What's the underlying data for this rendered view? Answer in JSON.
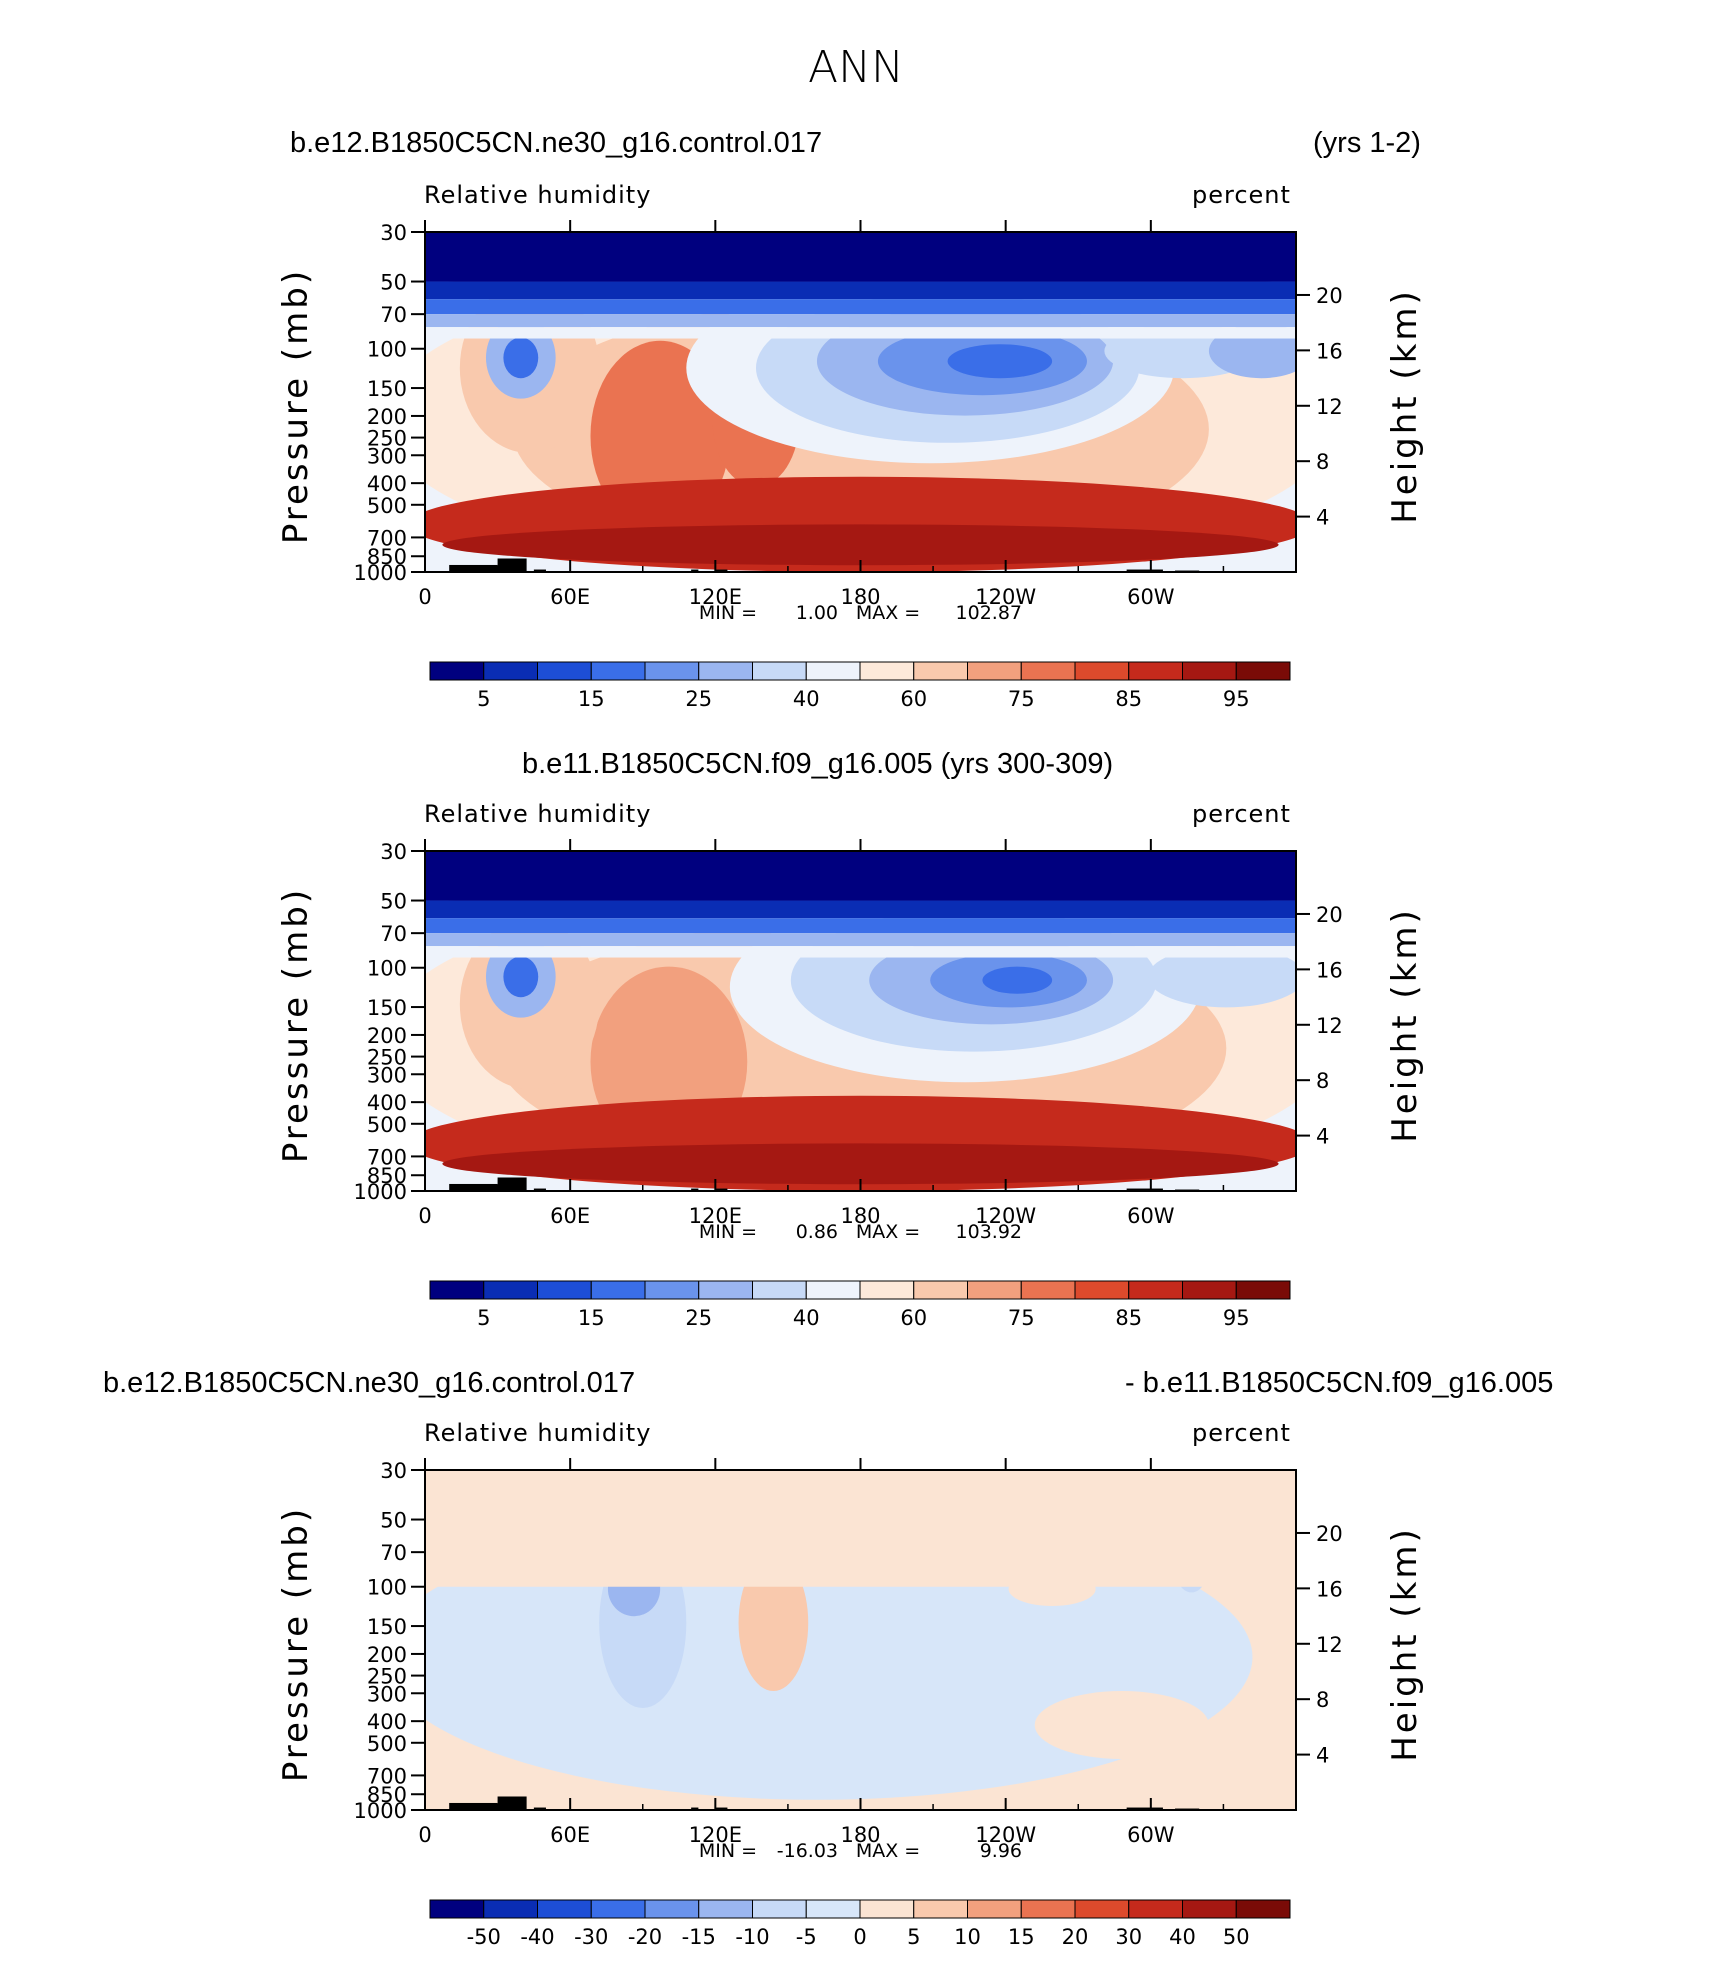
{
  "figure_title": "ANN",
  "colors": {
    "abs_palette": [
      "#00007f",
      "#0a2db4",
      "#1d4ed6",
      "#3a6ee8",
      "#6a93ec",
      "#9bb6f0",
      "#c7daf7",
      "#eef3fb",
      "#fde9da",
      "#f9c9ad",
      "#f2a07e",
      "#ea7351",
      "#dd4a2c",
      "#c52a1c",
      "#a51812",
      "#7a0b07"
    ],
    "diff_palette": [
      "#00007f",
      "#0a2db4",
      "#1d4ed6",
      "#3a6ee8",
      "#6a93ec",
      "#9bb6f0",
      "#c7daf7",
      "#d7e6f9",
      "#fbe4d3",
      "#f9c9ad",
      "#f2a07e",
      "#ea7351",
      "#dd4a2c",
      "#c52a1c",
      "#a51812",
      "#7a0b07"
    ],
    "land": "#000000"
  },
  "panels": [
    {
      "title_left": "b.e12.B1850C5CN.ne30_g16.control.017",
      "title_right": "(yrs 1-2)",
      "title_center": "",
      "var_label": "Relative  humidity",
      "units": "percent",
      "min_label": "MIN =",
      "min_value": "1.00",
      "max_label": "MAX =",
      "max_value": "102.87",
      "colorbar_labels": [
        "5",
        "15",
        "25",
        "40",
        "60",
        "75",
        "85",
        "95"
      ]
    },
    {
      "title_left": "",
      "title_right": "",
      "title_center": "b.e11.B1850C5CN.f09_g16.005 (yrs 300-309)",
      "var_label": "Relative  humidity",
      "units": "percent",
      "min_label": "MIN =",
      "min_value": "0.86",
      "max_label": "MAX =",
      "max_value": "103.92",
      "colorbar_labels": [
        "5",
        "15",
        "25",
        "40",
        "60",
        "75",
        "85",
        "95"
      ]
    },
    {
      "title_left": "b.e12.B1850C5CN.ne30_g16.control.017",
      "title_right": "- b.e11.B1850C5CN.f09_g16.005",
      "title_center": "",
      "var_label": "Relative  humidity",
      "units": "percent",
      "min_label": "MIN =",
      "min_value": "-16.03",
      "max_label": "MAX =",
      "max_value": "9.96",
      "colorbar_labels": [
        "-50",
        "-40",
        "-30",
        "-20",
        "-15",
        "-10",
        "-5",
        "0",
        "5",
        "10",
        "15",
        "20",
        "30",
        "40",
        "50"
      ]
    }
  ],
  "chart_data": [
    {
      "type": "heatmap",
      "title": "b.e12.B1850C5CN.ne30_g16.control.017 (yrs 1-2)",
      "variable": "Relative humidity",
      "units": "percent",
      "xlabel": "",
      "ylabel": "Pressure  (mb)",
      "y2label": "Height  (km)",
      "x_ticks": [
        "0",
        "60E",
        "120E",
        "180",
        "120W",
        "60W"
      ],
      "y_ticks": [
        "30",
        "50",
        "70",
        "100",
        "150",
        "200",
        "250",
        "300",
        "400",
        "500",
        "700",
        "850",
        "1000"
      ],
      "y_tick_values": [
        30,
        50,
        70,
        100,
        150,
        200,
        250,
        300,
        400,
        500,
        700,
        850,
        1000
      ],
      "y2_ticks": [
        "20",
        "16",
        "12",
        "8",
        "4"
      ],
      "y2_tick_values": [
        20,
        16,
        12,
        8,
        4
      ],
      "xlim": [
        0,
        360
      ],
      "ylim": [
        1000,
        30
      ],
      "contour_levels": [
        5,
        10,
        15,
        20,
        25,
        30,
        40,
        50,
        60,
        70,
        75,
        80,
        85,
        90,
        95
      ],
      "min": 1.0,
      "max": 102.87
    },
    {
      "type": "heatmap",
      "title": "b.e11.B1850C5CN.f09_g16.005 (yrs 300-309)",
      "variable": "Relative humidity",
      "units": "percent",
      "xlabel": "",
      "ylabel": "Pressure  (mb)",
      "y2label": "Height  (km)",
      "x_ticks": [
        "0",
        "60E",
        "120E",
        "180",
        "120W",
        "60W"
      ],
      "y_ticks": [
        "30",
        "50",
        "70",
        "100",
        "150",
        "200",
        "250",
        "300",
        "400",
        "500",
        "700",
        "850",
        "1000"
      ],
      "y_tick_values": [
        30,
        50,
        70,
        100,
        150,
        200,
        250,
        300,
        400,
        500,
        700,
        850,
        1000
      ],
      "y2_ticks": [
        "20",
        "16",
        "12",
        "8",
        "4"
      ],
      "y2_tick_values": [
        20,
        16,
        12,
        8,
        4
      ],
      "xlim": [
        0,
        360
      ],
      "ylim": [
        1000,
        30
      ],
      "contour_levels": [
        5,
        10,
        15,
        20,
        25,
        30,
        40,
        50,
        60,
        70,
        75,
        80,
        85,
        90,
        95
      ],
      "min": 0.86,
      "max": 103.92
    },
    {
      "type": "heatmap",
      "title": "b.e12.B1850C5CN.ne30_g16.control.017 - b.e11.B1850C5CN.f09_g16.005",
      "variable": "Relative humidity",
      "units": "percent",
      "xlabel": "",
      "ylabel": "Pressure  (mb)",
      "y2label": "Height  (km)",
      "x_ticks": [
        "0",
        "60E",
        "120E",
        "180",
        "120W",
        "60W"
      ],
      "y_ticks": [
        "30",
        "50",
        "70",
        "100",
        "150",
        "200",
        "250",
        "300",
        "400",
        "500",
        "700",
        "850",
        "1000"
      ],
      "y_tick_values": [
        30,
        50,
        70,
        100,
        150,
        200,
        250,
        300,
        400,
        500,
        700,
        850,
        1000
      ],
      "y2_ticks": [
        "20",
        "16",
        "12",
        "8",
        "4"
      ],
      "y2_tick_values": [
        20,
        16,
        12,
        8,
        4
      ],
      "xlim": [
        0,
        360
      ],
      "ylim": [
        1000,
        30
      ],
      "contour_levels": [
        -50,
        -40,
        -30,
        -20,
        -15,
        -10,
        -5,
        0,
        5,
        10,
        15,
        20,
        30,
        40,
        50
      ],
      "min": -16.03,
      "max": 9.96
    }
  ],
  "axis_text": {
    "ylabel": "Pressure  (mb)",
    "y2label": "Height  (km)"
  }
}
